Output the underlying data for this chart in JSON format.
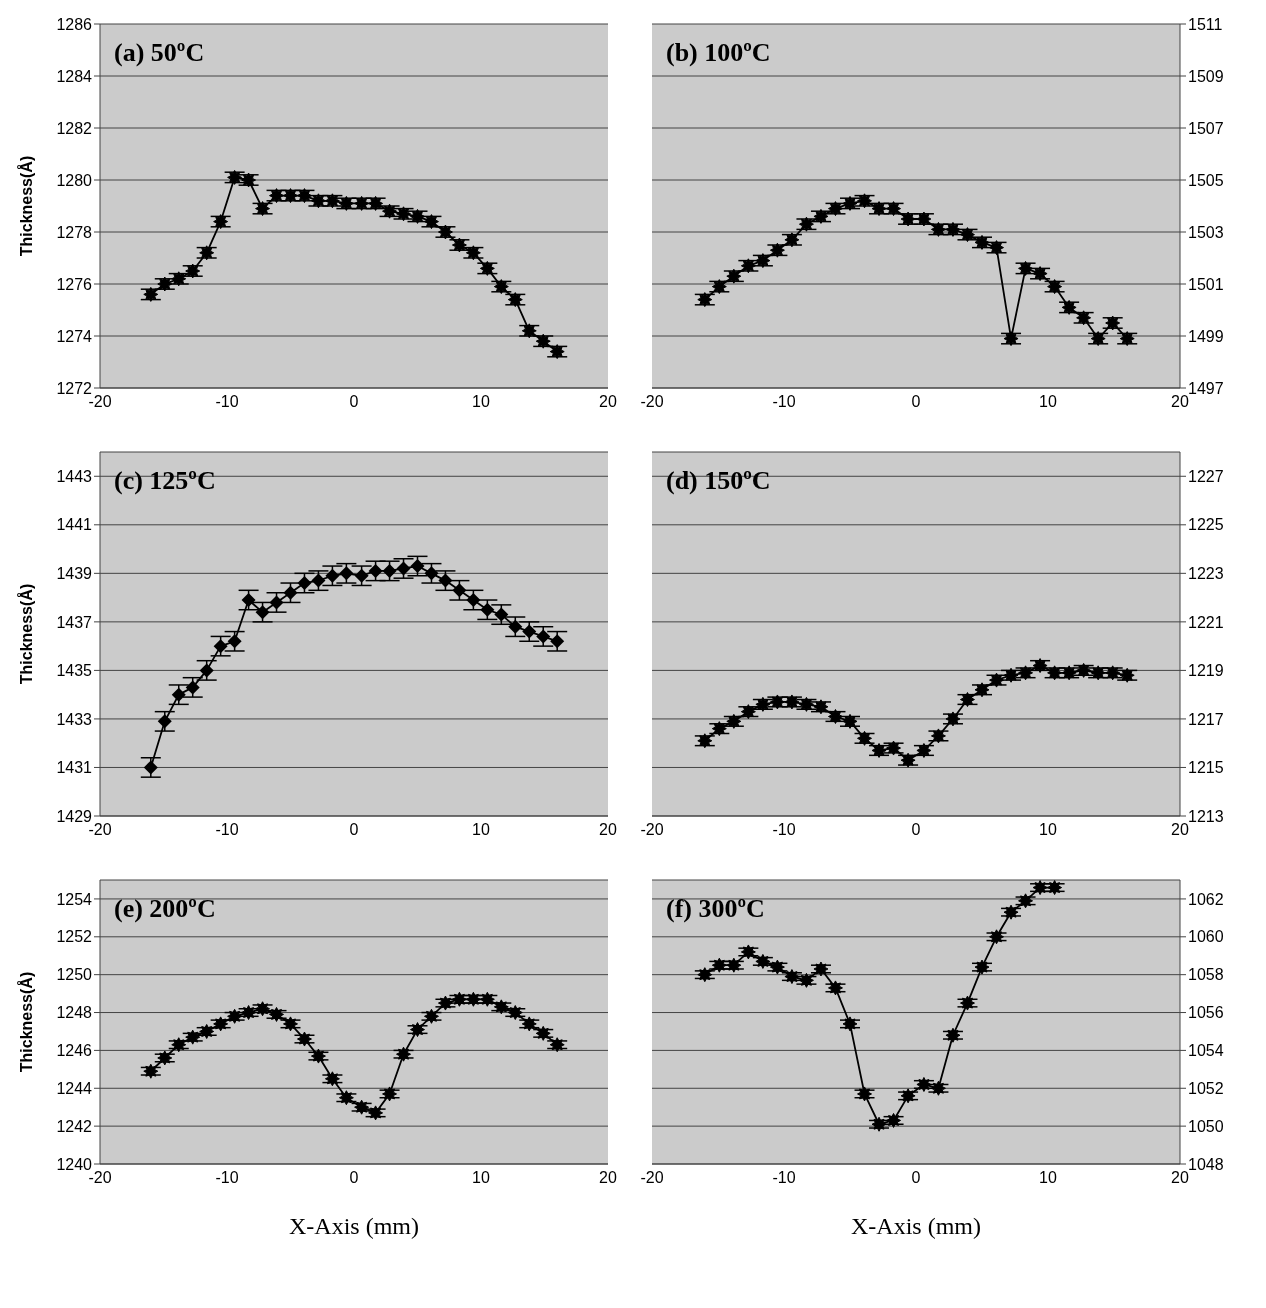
{
  "chart_data": [
    {
      "type": "line",
      "annotations": [
        "(a) 50ºC"
      ],
      "ylabel": "Thickness(Å)",
      "x": [
        -16.0,
        -14.9,
        -13.8,
        -12.7,
        -11.6,
        -10.5,
        -9.4,
        -8.3,
        -7.2,
        -6.1,
        -5.0,
        -3.9,
        -2.8,
        -1.7,
        -0.6,
        0.6,
        1.7,
        2.8,
        3.9,
        5.0,
        6.1,
        7.2,
        8.3,
        9.4,
        10.5,
        11.6,
        12.7,
        13.8,
        14.9,
        16.0
      ],
      "xlim": [
        -20,
        20
      ],
      "xticks": [
        -20,
        -10,
        0,
        10,
        20
      ],
      "ylim": [
        1272,
        1286
      ],
      "yticks": [
        1272,
        1274,
        1276,
        1278,
        1280,
        1282,
        1284,
        1286
      ],
      "grid": "y",
      "marker": "star",
      "line_style": "solid",
      "series": [
        {
          "color": "#000000",
          "values": [
            1275.6,
            1276.0,
            1276.2,
            1276.5,
            1277.2,
            1278.4,
            1280.1,
            1280.0,
            1278.9,
            1279.4,
            1279.4,
            1279.4,
            1279.2,
            1279.2,
            1279.1,
            1279.1,
            1279.1,
            1278.8,
            1278.7,
            1278.6,
            1278.4,
            1278.0,
            1277.5,
            1277.2,
            1276.6,
            1275.9,
            1275.4,
            1274.2,
            1273.8,
            1273.4
          ],
          "errors": [
            0.2,
            0.2,
            0.2,
            0.2,
            0.2,
            0.2,
            0.2,
            0.2,
            0.2,
            0.2,
            0.2,
            0.2,
            0.2,
            0.2,
            0.2,
            0.2,
            0.2,
            0.2,
            0.2,
            0.2,
            0.2,
            0.2,
            0.2,
            0.2,
            0.2,
            0.2,
            0.2,
            0.2,
            0.2,
            0.2
          ]
        }
      ]
    },
    {
      "type": "line",
      "annotations": [
        "(b) 100ºC"
      ],
      "x": [
        -16.0,
        -14.9,
        -13.8,
        -12.7,
        -11.6,
        -10.5,
        -9.4,
        -8.3,
        -7.2,
        -6.1,
        -5.0,
        -3.9,
        -2.8,
        -1.7,
        -0.6,
        0.6,
        1.7,
        2.8,
        3.9,
        5.0,
        6.1,
        7.2,
        8.3,
        9.4,
        10.5,
        11.6,
        12.7,
        13.8,
        14.9,
        16.0
      ],
      "xlim": [
        -20,
        20
      ],
      "xticks": [
        -20,
        -10,
        0,
        10,
        20
      ],
      "y2lim": [
        1497,
        1511
      ],
      "y2ticks": [
        1497,
        1499,
        1501,
        1503,
        1505,
        1507,
        1509,
        1511
      ],
      "grid": "y",
      "marker": "star",
      "line_style": "solid",
      "series": [
        {
          "color": "#000000",
          "axis": "y2",
          "values": [
            1500.4,
            1500.9,
            1501.3,
            1501.7,
            1501.9,
            1502.3,
            1502.7,
            1503.3,
            1503.6,
            1503.9,
            1504.1,
            1504.2,
            1503.9,
            1503.9,
            1503.5,
            1503.5,
            1503.1,
            1503.1,
            1502.9,
            1502.6,
            1502.4,
            1498.9,
            1501.6,
            1501.4,
            1500.9,
            1500.1,
            1499.7,
            1498.9,
            1499.5,
            1498.9
          ],
          "errors": [
            0.2,
            0.2,
            0.2,
            0.2,
            0.2,
            0.2,
            0.2,
            0.2,
            0.2,
            0.2,
            0.2,
            0.2,
            0.2,
            0.2,
            0.2,
            0.2,
            0.2,
            0.2,
            0.2,
            0.2,
            0.2,
            0.2,
            0.2,
            0.2,
            0.2,
            0.2,
            0.2,
            0.2,
            0.2,
            0.2
          ]
        }
      ]
    },
    {
      "type": "line",
      "annotations": [
        "(c) 125ºC"
      ],
      "ylabel": "Thickness(Å)",
      "x": [
        -16.0,
        -14.9,
        -13.8,
        -12.7,
        -11.6,
        -10.5,
        -9.4,
        -8.3,
        -7.2,
        -6.1,
        -5.0,
        -3.9,
        -2.8,
        -1.7,
        -0.6,
        0.6,
        1.7,
        2.8,
        3.9,
        5.0,
        6.1,
        7.2,
        8.3,
        9.4,
        10.5,
        11.6,
        12.7,
        13.8,
        14.9,
        16.0
      ],
      "xlim": [
        -20,
        20
      ],
      "xticks": [
        -20,
        -10,
        0,
        10,
        20
      ],
      "ylim": [
        1429,
        1444
      ],
      "yticks": [
        1429,
        1431,
        1433,
        1435,
        1437,
        1439,
        1441,
        1443
      ],
      "grid": "y",
      "marker": "diamond",
      "line_style": "solid",
      "series": [
        {
          "color": "#000000",
          "values": [
            1431.0,
            1432.9,
            1434.0,
            1434.3,
            1435.0,
            1436.0,
            1436.2,
            1437.9,
            1437.4,
            1437.8,
            1438.2,
            1438.6,
            1438.7,
            1438.9,
            1439.0,
            1438.9,
            1439.1,
            1439.1,
            1439.2,
            1439.3,
            1439.0,
            1438.7,
            1438.3,
            1437.9,
            1437.5,
            1437.3,
            1436.8,
            1436.6,
            1436.4,
            1436.2
          ],
          "errors": [
            0.4,
            0.4,
            0.4,
            0.4,
            0.4,
            0.4,
            0.4,
            0.4,
            0.4,
            0.4,
            0.4,
            0.4,
            0.4,
            0.4,
            0.4,
            0.4,
            0.4,
            0.4,
            0.4,
            0.4,
            0.4,
            0.4,
            0.4,
            0.4,
            0.4,
            0.4,
            0.4,
            0.4,
            0.4,
            0.4
          ]
        }
      ]
    },
    {
      "type": "line",
      "annotations": [
        "(d) 150ºC"
      ],
      "x": [
        -16.0,
        -14.9,
        -13.8,
        -12.7,
        -11.6,
        -10.5,
        -9.4,
        -8.3,
        -7.2,
        -6.1,
        -5.0,
        -3.9,
        -2.8,
        -1.7,
        -0.6,
        0.6,
        1.7,
        2.8,
        3.9,
        5.0,
        6.1,
        7.2,
        8.3,
        9.4,
        10.5,
        11.6,
        12.7,
        13.8,
        14.9,
        16.0
      ],
      "xlim": [
        -20,
        20
      ],
      "xticks": [
        -20,
        -10,
        0,
        10,
        20
      ],
      "y2lim": [
        1213,
        1228
      ],
      "y2ticks": [
        1213,
        1215,
        1217,
        1219,
        1221,
        1223,
        1225,
        1227
      ],
      "grid": "y",
      "marker": "star",
      "line_style": "solid",
      "series": [
        {
          "color": "#000000",
          "axis": "y2",
          "values": [
            1216.1,
            1216.6,
            1216.9,
            1217.3,
            1217.6,
            1217.7,
            1217.7,
            1217.6,
            1217.5,
            1217.1,
            1216.9,
            1216.2,
            1215.7,
            1215.8,
            1215.3,
            1215.7,
            1216.3,
            1217.0,
            1217.8,
            1218.2,
            1218.6,
            1218.8,
            1218.9,
            1219.2,
            1218.9,
            1218.9,
            1219.0,
            1218.9,
            1218.9,
            1218.8
          ],
          "errors": [
            0.2,
            0.2,
            0.2,
            0.2,
            0.2,
            0.2,
            0.2,
            0.2,
            0.2,
            0.2,
            0.2,
            0.2,
            0.2,
            0.2,
            0.2,
            0.2,
            0.2,
            0.2,
            0.2,
            0.2,
            0.2,
            0.2,
            0.2,
            0.2,
            0.2,
            0.2,
            0.2,
            0.2,
            0.2,
            0.2
          ]
        }
      ]
    },
    {
      "type": "line",
      "annotations": [
        "(e) 200ºC"
      ],
      "ylabel": "Thickness(Å)",
      "xlabel": "X-Axis (mm)",
      "x": [
        -16.0,
        -14.9,
        -13.8,
        -12.7,
        -11.6,
        -10.5,
        -9.4,
        -8.3,
        -7.2,
        -6.1,
        -5.0,
        -3.9,
        -2.8,
        -1.7,
        -0.6,
        0.6,
        1.7,
        2.8,
        3.9,
        5.0,
        6.1,
        7.2,
        8.3,
        9.4,
        10.5,
        11.6,
        12.7,
        13.8,
        14.9,
        16.0
      ],
      "xlim": [
        -20,
        20
      ],
      "xticks": [
        -20,
        -10,
        0,
        10,
        20
      ],
      "ylim": [
        1240,
        1255
      ],
      "yticks": [
        1240,
        1242,
        1244,
        1246,
        1248,
        1250,
        1252,
        1254
      ],
      "grid": "y",
      "marker": "star",
      "line_style": "solid",
      "series": [
        {
          "color": "#000000",
          "values": [
            1244.9,
            1245.6,
            1246.3,
            1246.7,
            1247.0,
            1247.4,
            1247.8,
            1248.0,
            1248.2,
            1247.9,
            1247.4,
            1246.6,
            1245.7,
            1244.5,
            1243.5,
            1243.0,
            1242.7,
            1243.7,
            1245.8,
            1247.1,
            1247.8,
            1248.5,
            1248.7,
            1248.7,
            1248.7,
            1248.3,
            1248.0,
            1247.4,
            1246.9,
            1246.3
          ],
          "errors": [
            0.2,
            0.2,
            0.2,
            0.2,
            0.2,
            0.2,
            0.2,
            0.2,
            0.2,
            0.2,
            0.2,
            0.2,
            0.2,
            0.2,
            0.2,
            0.2,
            0.2,
            0.2,
            0.2,
            0.2,
            0.2,
            0.2,
            0.2,
            0.2,
            0.2,
            0.2,
            0.2,
            0.2,
            0.2,
            0.2
          ]
        }
      ]
    },
    {
      "type": "line",
      "annotations": [
        "(f) 300ºC"
      ],
      "xlabel": "X-Axis (mm)",
      "xlim": [
        -20,
        20
      ],
      "xticks": [
        -20,
        -10,
        0,
        10,
        20
      ],
      "y2lim": [
        1048,
        1063
      ],
      "y2ticks": [
        1048,
        1050,
        1052,
        1054,
        1056,
        1058,
        1060,
        1062
      ],
      "grid": "y",
      "marker": "star",
      "line_style": "solid",
      "series": [
        {
          "color": "#000000",
          "axis": "y2",
          "x": [
            -16.0,
            -14.9,
            -13.8,
            -12.7,
            -11.6,
            -10.5,
            -9.4,
            -8.3,
            -7.2,
            -6.1,
            -5.0,
            -3.9,
            -2.8,
            -1.7,
            -0.6,
            0.6,
            1.7,
            2.8,
            3.9,
            5.0,
            6.1,
            7.2,
            8.3,
            9.4,
            10.5
          ],
          "values": [
            1058.0,
            1058.5,
            1058.5,
            1059.2,
            1058.7,
            1058.4,
            1057.9,
            1057.7,
            1058.3,
            1057.3,
            1055.4,
            1051.7,
            1050.1,
            1050.3,
            1051.6,
            1052.2,
            1052.0,
            1054.8,
            1056.5,
            1058.4,
            1060.0,
            1061.3,
            1061.9,
            1062.6,
            1062.6
          ],
          "errors": [
            0.2,
            0.2,
            0.2,
            0.2,
            0.2,
            0.2,
            0.2,
            0.2,
            0.2,
            0.2,
            0.2,
            0.2,
            0.2,
            0.2,
            0.2,
            0.2,
            0.2,
            0.2,
            0.2,
            0.2,
            0.2,
            0.2,
            0.2,
            0.2,
            0.2
          ]
        }
      ]
    }
  ]
}
